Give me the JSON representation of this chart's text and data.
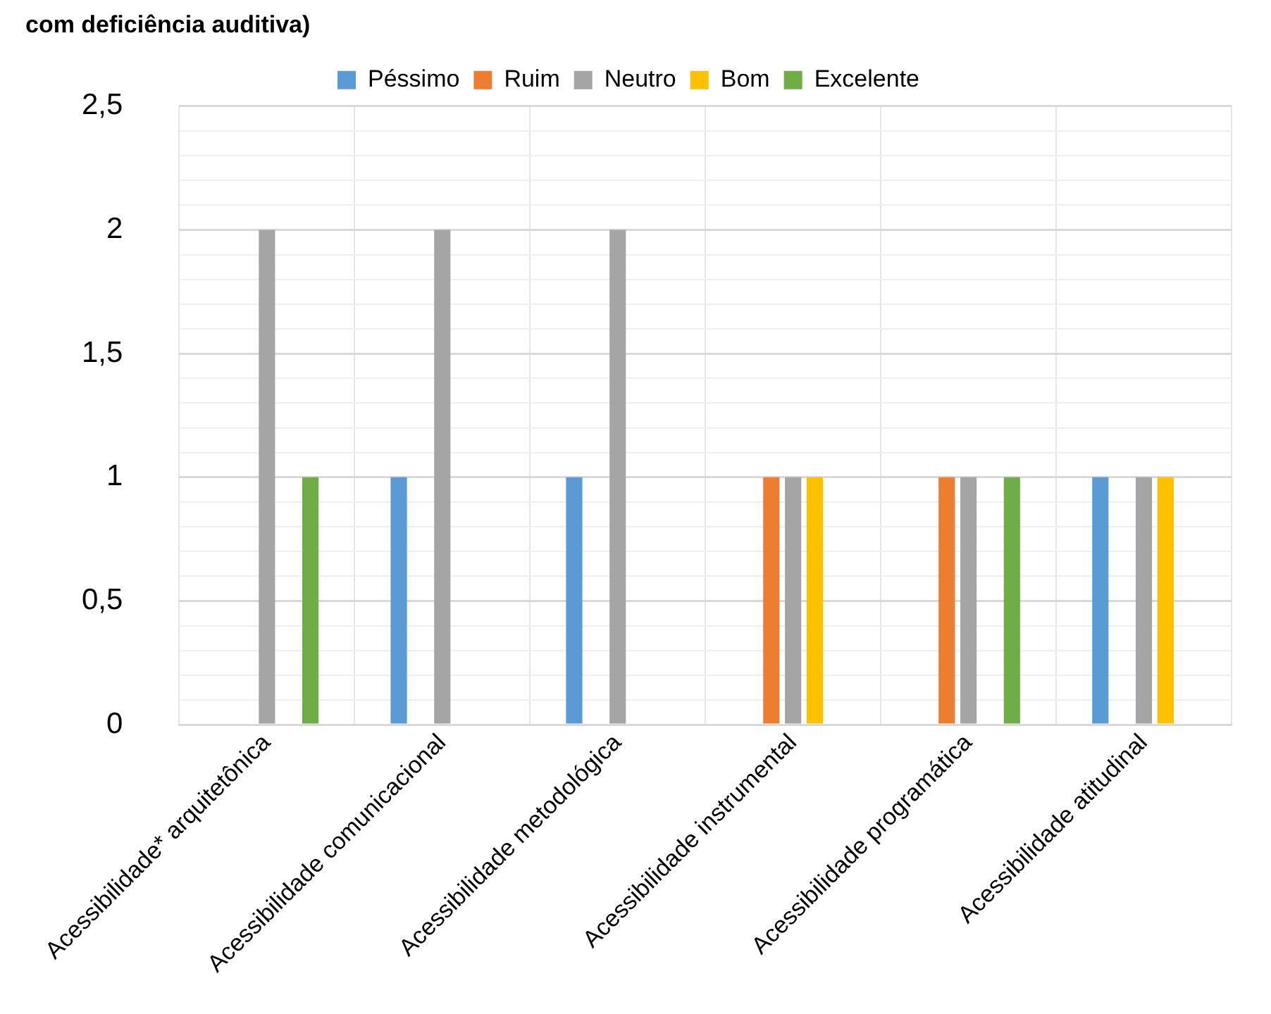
{
  "chart_data": {
    "type": "bar",
    "title": "com deficiência auditiva)",
    "categories": [
      "Acessibilidade* arquitetônica",
      "Acessibilidade comunicacional",
      "Acessibilidade metodológica",
      "Acessibilidade instrumental",
      "Acessibilidade programática",
      "Acessibilidade atitudinal"
    ],
    "series": [
      {
        "name": "Péssimo",
        "color": "#5b9bd5",
        "values": [
          0,
          1,
          1,
          0,
          0,
          1
        ]
      },
      {
        "name": "Ruim",
        "color": "#ed7d31",
        "values": [
          0,
          0,
          0,
          1,
          1,
          0
        ]
      },
      {
        "name": "Neutro",
        "color": "#a5a5a5",
        "values": [
          2,
          2,
          2,
          1,
          1,
          1
        ]
      },
      {
        "name": "Bom",
        "color": "#ffc000",
        "values": [
          0,
          0,
          0,
          1,
          0,
          1
        ]
      },
      {
        "name": "Excelente",
        "color": "#70ad47",
        "values": [
          1,
          0,
          0,
          0,
          1,
          0
        ]
      }
    ],
    "ylim": [
      0,
      2.5
    ],
    "yticks": [
      0,
      {
        "value": 0.1,
        "label": null
      },
      {
        "value": 0.2,
        "label": null
      },
      {
        "value": 0.3,
        "label": null
      },
      {
        "value": 0.4,
        "label": null
      },
      {
        "value": 0.5,
        "label": "0,5"
      },
      {
        "value": 0.6,
        "label": null
      },
      {
        "value": 0.7,
        "label": null
      },
      {
        "value": 0.8,
        "label": null
      },
      {
        "value": 0.9,
        "label": null
      },
      1,
      {
        "value": 1.1,
        "label": null
      },
      {
        "value": 1.2,
        "label": null
      },
      {
        "value": 1.3,
        "label": null
      },
      {
        "value": 1.4,
        "label": null
      },
      {
        "value": 1.5,
        "label": "1,5"
      },
      {
        "value": 1.6,
        "label": null
      },
      {
        "value": 1.7,
        "label": null
      },
      {
        "value": 1.8,
        "label": null
      },
      {
        "value": 1.9,
        "label": null
      },
      2,
      {
        "value": 2.1,
        "label": null
      },
      {
        "value": 2.2,
        "label": null
      },
      {
        "value": 2.3,
        "label": null
      },
      {
        "value": 2.4,
        "label": null
      },
      {
        "value": 2.5,
        "label": "2,5"
      }
    ],
    "grid": true,
    "legend": "top"
  }
}
